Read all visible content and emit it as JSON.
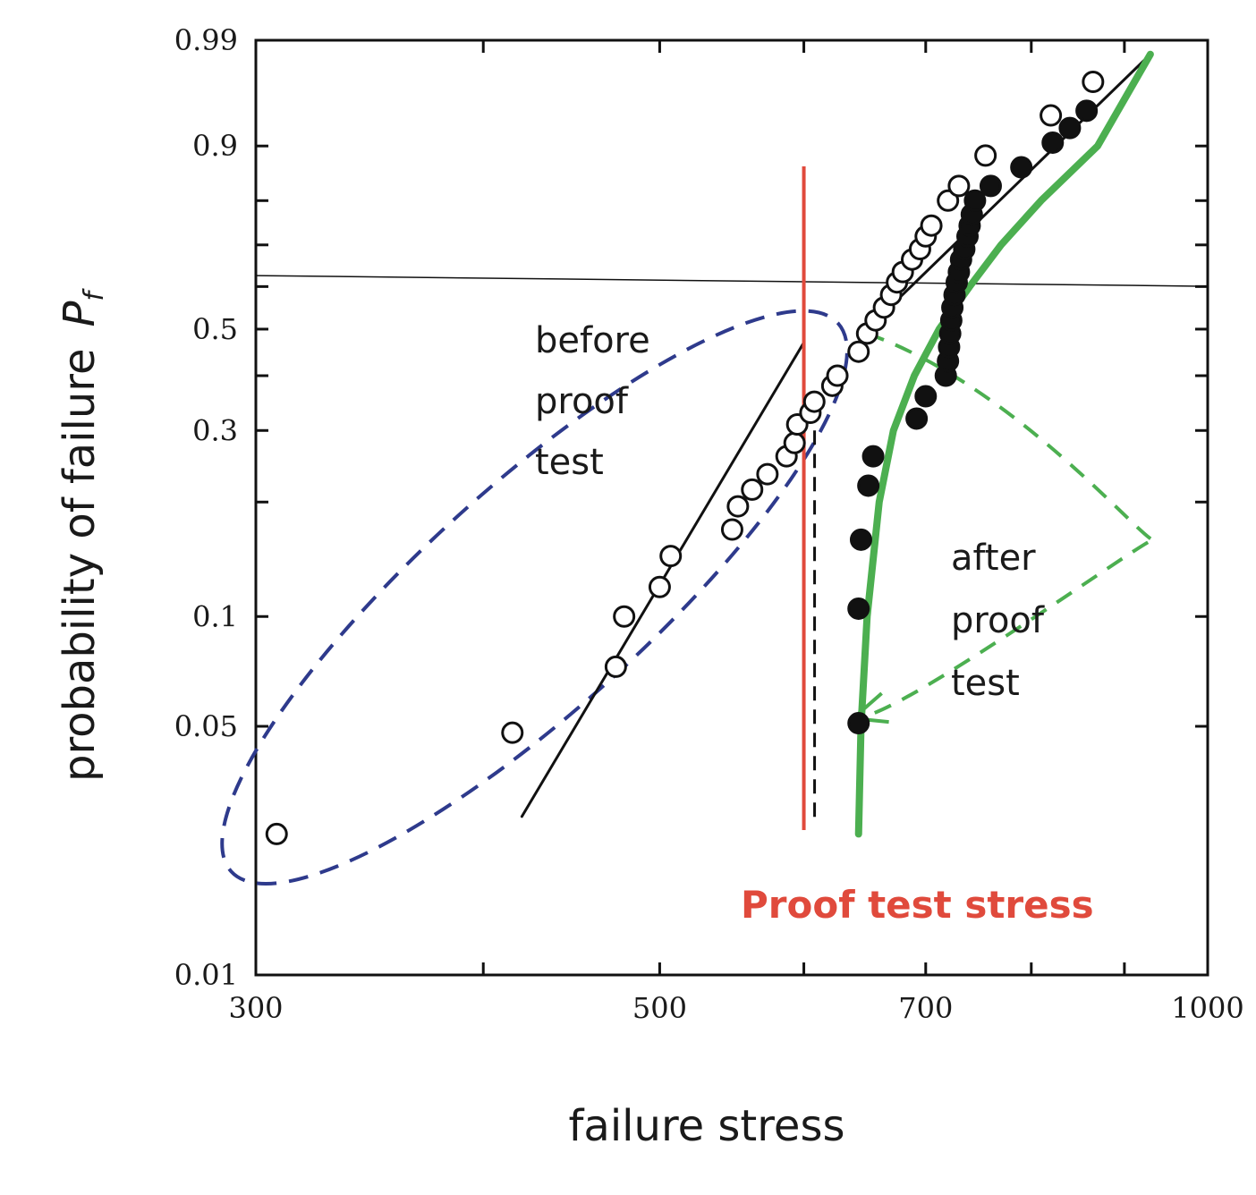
{
  "chart_data": {
    "type": "scatter",
    "title": "",
    "xlabel": "failure stress",
    "ylabel_text": "probability of failure",
    "ylabel_symbol": "P",
    "ylabel_subscript": "f",
    "x_scale": "log",
    "y_scale": "weibull",
    "xlim": [
      300,
      1000
    ],
    "ylim": [
      0.01,
      0.99
    ],
    "x_ticks": [
      "300",
      "500",
      "700",
      "1000"
    ],
    "y_ticks": [
      "0.99",
      "0.9",
      "0.5",
      "0.3",
      "0.1",
      "0.05",
      "0.01"
    ],
    "proof_test_stress": 600,
    "series": [
      {
        "name": "before proof test",
        "marker": "open-circle",
        "points": [
          [
            308,
            0.025
          ],
          [
            415,
            0.048
          ],
          [
            473,
            0.073
          ],
          [
            478,
            0.1
          ],
          [
            500,
            0.12
          ],
          [
            507,
            0.145
          ],
          [
            548,
            0.17
          ],
          [
            552,
            0.195
          ],
          [
            562,
            0.215
          ],
          [
            573,
            0.235
          ],
          [
            587,
            0.26
          ],
          [
            593,
            0.28
          ],
          [
            595,
            0.31
          ],
          [
            605,
            0.33
          ],
          [
            608,
            0.35
          ],
          [
            622,
            0.38
          ],
          [
            626,
            0.4
          ],
          [
            643,
            0.45
          ],
          [
            650,
            0.49
          ],
          [
            657,
            0.52
          ],
          [
            664,
            0.55
          ],
          [
            670,
            0.58
          ],
          [
            675,
            0.61
          ],
          [
            680,
            0.635
          ],
          [
            688,
            0.665
          ],
          [
            695,
            0.69
          ],
          [
            700,
            0.72
          ],
          [
            705,
            0.745
          ],
          [
            720,
            0.8
          ],
          [
            730,
            0.83
          ],
          [
            755,
            0.885
          ],
          [
            820,
            0.94
          ],
          [
            865,
            0.97
          ]
        ]
      },
      {
        "name": "after proof test",
        "marker": "filled-circle",
        "points": [
          [
            643,
            0.051
          ],
          [
            643,
            0.105
          ],
          [
            645,
            0.16
          ],
          [
            651,
            0.22
          ],
          [
            655,
            0.26
          ],
          [
            692,
            0.32
          ],
          [
            700,
            0.36
          ],
          [
            718,
            0.4
          ],
          [
            720,
            0.43
          ],
          [
            721,
            0.46
          ],
          [
            722,
            0.49
          ],
          [
            723,
            0.52
          ],
          [
            724,
            0.55
          ],
          [
            726,
            0.58
          ],
          [
            728,
            0.61
          ],
          [
            730,
            0.635
          ],
          [
            732,
            0.665
          ],
          [
            735,
            0.69
          ],
          [
            738,
            0.72
          ],
          [
            740,
            0.745
          ],
          [
            742,
            0.77
          ],
          [
            745,
            0.8
          ],
          [
            760,
            0.83
          ],
          [
            790,
            0.865
          ],
          [
            822,
            0.905
          ],
          [
            840,
            0.925
          ],
          [
            858,
            0.945
          ]
        ]
      }
    ],
    "fit_lines": [
      {
        "name": "before fit",
        "color": "#111111",
        "points": [
          [
            420,
            0.028
          ],
          [
            600,
            0.47
          ]
        ]
      },
      {
        "name": "after fit",
        "color": "#111111",
        "points": [
          [
            650,
            0.5
          ],
          [
            930,
            0.985
          ]
        ]
      },
      {
        "name": "after proof test curve",
        "color": "#4caf50",
        "points": [
          [
            643,
            0.025
          ],
          [
            645,
            0.05
          ],
          [
            650,
            0.1
          ],
          [
            660,
            0.2
          ],
          [
            672,
            0.3
          ],
          [
            690,
            0.4
          ],
          [
            712,
            0.5
          ],
          [
            740,
            0.6
          ],
          [
            770,
            0.7
          ],
          [
            810,
            0.8
          ],
          [
            870,
            0.9
          ],
          [
            930,
            0.985
          ]
        ]
      }
    ],
    "reference_line_p": 0.62,
    "annotations": {
      "before": [
        "before",
        "proof",
        "test"
      ],
      "after": [
        "after",
        "proof",
        "test"
      ],
      "proof_label": "Proof test stress"
    },
    "colors": {
      "proof_line": "#e04a3c",
      "green": "#4caf50",
      "ellipse": "#2e3a8c",
      "axis": "#111111"
    },
    "grid": false,
    "legend": "none"
  }
}
